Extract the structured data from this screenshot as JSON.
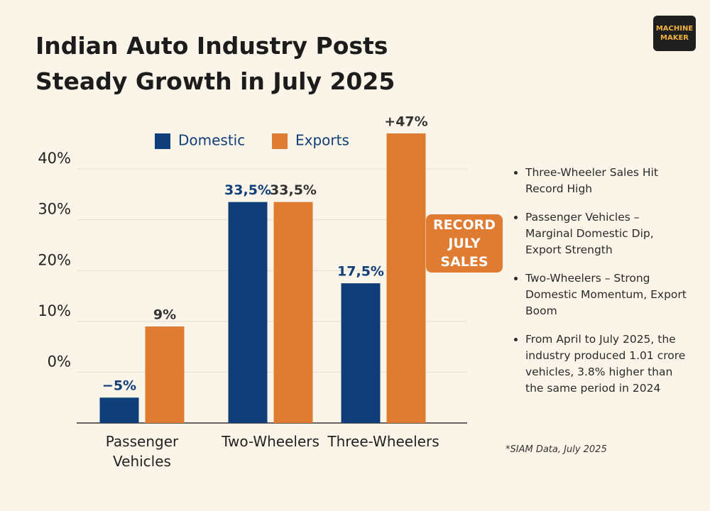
{
  "logo": "MACHINE MAKER",
  "bullets": [
    "Three-Wheeler Sales Hit Record High",
    "Passenger Vehicles – Marginal Domestic Dip, Export Strength",
    "Two-Wheelers – Strong Domestic Momentum, Export Boom",
    "From April to July 2025, the industry produced 1.01 crore vehicles, 3.8% higher than the same period in 2024"
  ],
  "chart_data": {
    "type": "bar",
    "title": "Indian Auto Industry Posts Steady Growth in July 2025",
    "annotation": "RECORD JULY SALES",
    "source": "*SIAM Data, July 2025",
    "categories": [
      "Passenger Vehicles",
      "Two-Wheelers",
      "Three-Wheelers"
    ],
    "series": [
      {
        "name": "Domestic",
        "color": "#103e78",
        "values": [
          -5,
          33.5,
          17.5
        ],
        "value_labels": [
          "−5%",
          "33,5%",
          "17,5%"
        ]
      },
      {
        "name": "Exports",
        "color": "#e07b32",
        "values": [
          9,
          33.5,
          47
        ],
        "value_labels": [
          "9%",
          "33,5%",
          "+47%"
        ]
      }
    ],
    "ylim": [
      -10,
      50
    ],
    "yticks": [
      {
        "value": 0,
        "label": "0%"
      },
      {
        "value": 10,
        "label": "10%"
      },
      {
        "value": 20,
        "label": "20%"
      },
      {
        "value": 30,
        "label": "30%"
      },
      {
        "value": 40,
        "label": "40%"
      }
    ],
    "grid": true,
    "legend": "top"
  }
}
